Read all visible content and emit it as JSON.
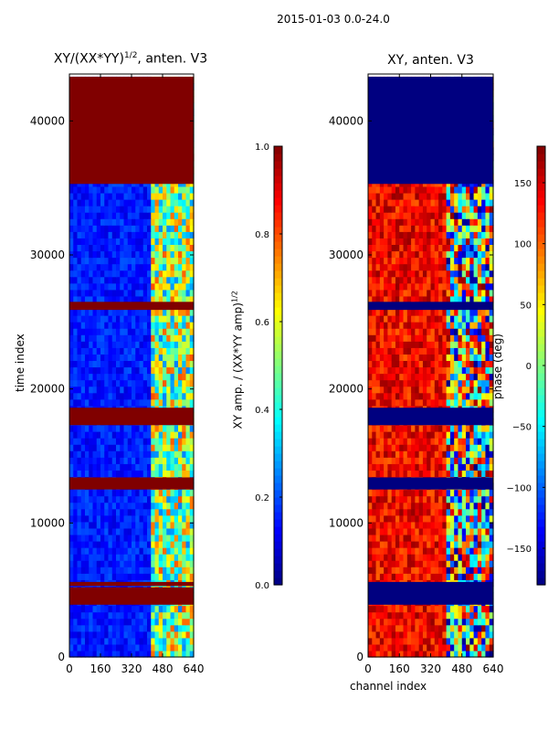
{
  "figure": {
    "suptitle": "2015-01-03 0.0-24.0"
  },
  "chart_data": [
    {
      "type": "heatmap",
      "title": "XY/(XX*YY)^(1/2), anten. V3",
      "title_main": "XY/(XX*YY)",
      "title_sup": "1/2",
      "title_rest": ", anten. V3",
      "xlabel": "",
      "ylabel": "time index",
      "xlim": [
        0,
        640
      ],
      "ylim": [
        0,
        43500
      ],
      "xticks": [
        "0",
        "160",
        "320",
        "480",
        "640"
      ],
      "yticks": [
        "0",
        "10000",
        "20000",
        "30000",
        "40000"
      ],
      "colorbar": {
        "label_main": "XY amp. / (XX*YY amp)",
        "label_sup": "1/2",
        "range": [
          0.0,
          1.0
        ],
        "ticks": [
          "0.0",
          "0.2",
          "0.4",
          "0.6",
          "0.8",
          "1.0"
        ],
        "colormap": "jet"
      },
      "blocks": [
        {
          "y0": 35300,
          "y1": 43300,
          "value": 1.0
        },
        {
          "y0": 25900,
          "y1": 26500,
          "value": 1.0
        },
        {
          "y0": 17300,
          "y1": 18600,
          "value": 1.0
        },
        {
          "y0": 12500,
          "y1": 13400,
          "value": 1.0
        },
        {
          "y0": 3900,
          "y1": 5200,
          "value": 1.0
        },
        {
          "y0": 5300,
          "y1": 5600,
          "value": 1.0
        }
      ],
      "background_value": 0.15,
      "active_channels": [
        420,
        640
      ]
    },
    {
      "type": "heatmap",
      "title": "XY, anten. V3",
      "xlabel": "channel index",
      "ylabel": "",
      "xlim": [
        0,
        640
      ],
      "ylim": [
        0,
        43500
      ],
      "xticks": [
        "0",
        "160",
        "320",
        "480",
        "640"
      ],
      "yticks": [
        "0",
        "10000",
        "20000",
        "30000",
        "40000"
      ],
      "colorbar": {
        "label": "phase (deg)",
        "range": [
          -180,
          180
        ],
        "ticks": [
          "−150",
          "−100",
          "−50",
          "0",
          "50",
          "100",
          "150"
        ],
        "colormap": "jet"
      },
      "blocks": [
        {
          "y0": 35300,
          "y1": 43300,
          "value": -180
        },
        {
          "y0": 25900,
          "y1": 26500,
          "value": -180
        },
        {
          "y0": 17300,
          "y1": 18600,
          "value": -180
        },
        {
          "y0": 12500,
          "y1": 13400,
          "value": -180
        },
        {
          "y0": 3900,
          "y1": 5600,
          "value": -180
        }
      ],
      "background_value": 140,
      "active_channels": [
        400,
        640
      ]
    }
  ]
}
